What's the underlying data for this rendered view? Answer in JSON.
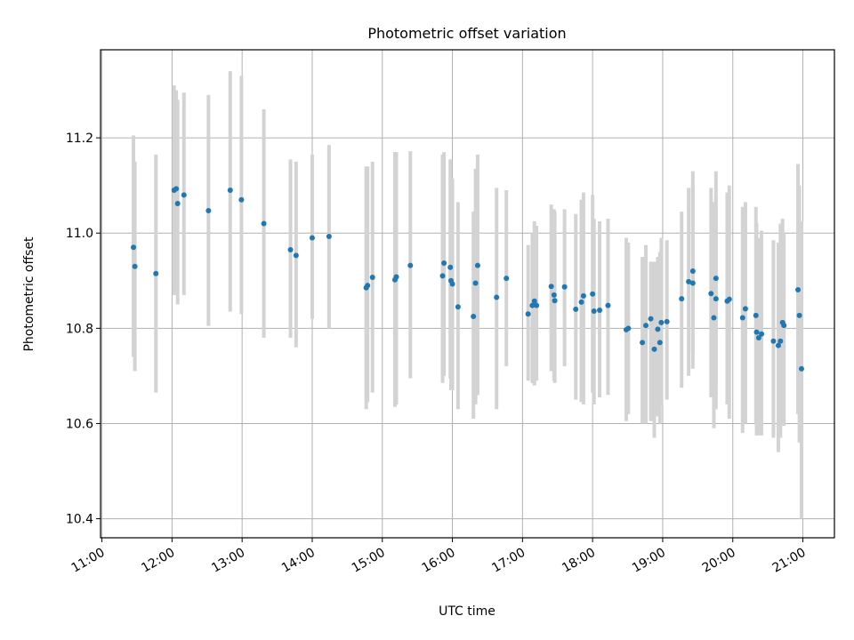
{
  "chart_data": {
    "type": "scatter",
    "title": "Photometric offset variation",
    "xlabel": "UTC time",
    "ylabel": "Photometric offset",
    "grid": true,
    "xlim": [
      10.98,
      21.45
    ],
    "ylim": [
      10.36,
      11.385
    ],
    "x_ticks": [
      {
        "value": 11,
        "label": "11:00"
      },
      {
        "value": 12,
        "label": "12:00"
      },
      {
        "value": 13,
        "label": "13:00"
      },
      {
        "value": 14,
        "label": "14:00"
      },
      {
        "value": 15,
        "label": "15:00"
      },
      {
        "value": 16,
        "label": "16:00"
      },
      {
        "value": 17,
        "label": "17:00"
      },
      {
        "value": 18,
        "label": "18:00"
      },
      {
        "value": 19,
        "label": "19:00"
      },
      {
        "value": 20,
        "label": "20:00"
      },
      {
        "value": 21,
        "label": "21:00"
      }
    ],
    "y_ticks": [
      {
        "value": 10.4,
        "label": "10.4"
      },
      {
        "value": 10.6,
        "label": "10.6"
      },
      {
        "value": 10.8,
        "label": "10.8"
      },
      {
        "value": 11.0,
        "label": "11.0"
      },
      {
        "value": 11.2,
        "label": "11.2"
      }
    ],
    "point_color": "#1f77b4",
    "errorbar_color": "#d3d3d3",
    "grid_color": "#b0b0b0",
    "points": [
      [
        11.45,
        10.97,
        10.74,
        11.205
      ],
      [
        11.47,
        10.93,
        10.71,
        11.15
      ],
      [
        11.77,
        10.915,
        10.665,
        11.165
      ],
      [
        12.03,
        11.09,
        10.87,
        11.31
      ],
      [
        12.06,
        11.093,
        10.88,
        11.3
      ],
      [
        12.08,
        11.062,
        10.85,
        11.28
      ],
      [
        12.17,
        11.08,
        10.87,
        11.295
      ],
      [
        12.52,
        11.047,
        10.805,
        11.29
      ],
      [
        12.83,
        11.09,
        10.835,
        11.34
      ],
      [
        12.99,
        11.07,
        10.83,
        11.33
      ],
      [
        13.31,
        11.02,
        10.78,
        11.26
      ],
      [
        13.69,
        10.965,
        10.78,
        11.155
      ],
      [
        13.77,
        10.953,
        10.76,
        11.15
      ],
      [
        14.0,
        10.99,
        10.82,
        11.165
      ],
      [
        14.24,
        10.993,
        10.8,
        11.185
      ],
      [
        14.77,
        10.885,
        10.63,
        11.14
      ],
      [
        14.79,
        10.89,
        10.645,
        11.14
      ],
      [
        14.86,
        10.907,
        10.665,
        11.15
      ],
      [
        15.18,
        10.902,
        10.635,
        11.17
      ],
      [
        15.2,
        10.908,
        10.64,
        11.17
      ],
      [
        15.4,
        10.932,
        10.695,
        11.172
      ],
      [
        15.86,
        10.91,
        10.685,
        11.165
      ],
      [
        15.88,
        10.937,
        10.7,
        11.17
      ],
      [
        15.98,
        10.9,
        10.67,
        11.11
      ],
      [
        16.0,
        10.893,
        10.67,
        11.115
      ],
      [
        15.97,
        10.928,
        10.695,
        11.155
      ],
      [
        16.08,
        10.845,
        10.63,
        11.065
      ],
      [
        16.3,
        10.825,
        10.61,
        11.045
      ],
      [
        16.33,
        10.895,
        10.64,
        11.135
      ],
      [
        16.36,
        10.932,
        10.66,
        11.165
      ],
      [
        16.63,
        10.865,
        10.63,
        11.095
      ],
      [
        16.77,
        10.905,
        10.72,
        11.09
      ],
      [
        17.08,
        10.83,
        10.69,
        10.975
      ],
      [
        17.14,
        10.848,
        10.685,
        11.0
      ],
      [
        17.17,
        10.857,
        10.68,
        11.025
      ],
      [
        17.2,
        10.848,
        10.69,
        11.015
      ],
      [
        17.41,
        10.888,
        10.71,
        11.06
      ],
      [
        17.45,
        10.87,
        10.69,
        11.05
      ],
      [
        17.46,
        10.858,
        10.685,
        11.045
      ],
      [
        17.6,
        10.887,
        10.72,
        11.05
      ],
      [
        17.76,
        10.84,
        10.65,
        11.04
      ],
      [
        17.84,
        10.855,
        10.645,
        11.07
      ],
      [
        17.87,
        10.868,
        10.64,
        11.085
      ],
      [
        18.0,
        10.872,
        10.665,
        11.08
      ],
      [
        18.02,
        10.836,
        10.64,
        11.03
      ],
      [
        18.1,
        10.838,
        10.655,
        11.025
      ],
      [
        18.22,
        10.848,
        10.66,
        11.03
      ],
      [
        18.48,
        10.797,
        10.605,
        10.99
      ],
      [
        18.51,
        10.8,
        10.62,
        10.98
      ],
      [
        18.71,
        10.77,
        10.6,
        10.95
      ],
      [
        18.76,
        10.806,
        10.6,
        10.975
      ],
      [
        18.83,
        10.82,
        10.605,
        10.94
      ],
      [
        18.88,
        10.756,
        10.57,
        10.94
      ],
      [
        18.93,
        10.798,
        10.615,
        10.95
      ],
      [
        18.96,
        10.77,
        10.6,
        10.96
      ],
      [
        18.98,
        10.812,
        10.64,
        10.99
      ],
      [
        19.06,
        10.814,
        10.65,
        10.985
      ],
      [
        19.27,
        10.862,
        10.675,
        11.045
      ],
      [
        19.37,
        10.898,
        10.7,
        11.095
      ],
      [
        19.43,
        10.895,
        10.715,
        11.1
      ],
      [
        19.43,
        10.92,
        10.75,
        11.13
      ],
      [
        19.69,
        10.873,
        10.655,
        11.095
      ],
      [
        19.73,
        10.822,
        10.59,
        11.065
      ],
      [
        19.76,
        10.862,
        10.63,
        11.075
      ],
      [
        19.76,
        10.905,
        10.68,
        11.13
      ],
      [
        19.92,
        10.857,
        10.64,
        11.085
      ],
      [
        19.95,
        10.861,
        10.61,
        11.1
      ],
      [
        20.14,
        10.822,
        10.58,
        11.055
      ],
      [
        20.18,
        10.841,
        10.6,
        11.065
      ],
      [
        20.33,
        10.827,
        10.6,
        11.055
      ],
      [
        20.34,
        10.792,
        10.575,
        11.02
      ],
      [
        20.37,
        10.78,
        10.575,
        10.99
      ],
      [
        20.41,
        10.788,
        10.575,
        11.005
      ],
      [
        20.58,
        10.773,
        10.57,
        10.985
      ],
      [
        20.65,
        10.764,
        10.54,
        10.98
      ],
      [
        20.68,
        10.773,
        10.57,
        11.02
      ],
      [
        20.71,
        10.812,
        10.6,
        11.03
      ],
      [
        20.73,
        10.806,
        10.595,
        11.0
      ],
      [
        20.93,
        10.881,
        10.62,
        11.145
      ],
      [
        20.95,
        10.827,
        10.56,
        11.1
      ],
      [
        20.98,
        10.715,
        10.4,
        11.025
      ]
    ]
  }
}
